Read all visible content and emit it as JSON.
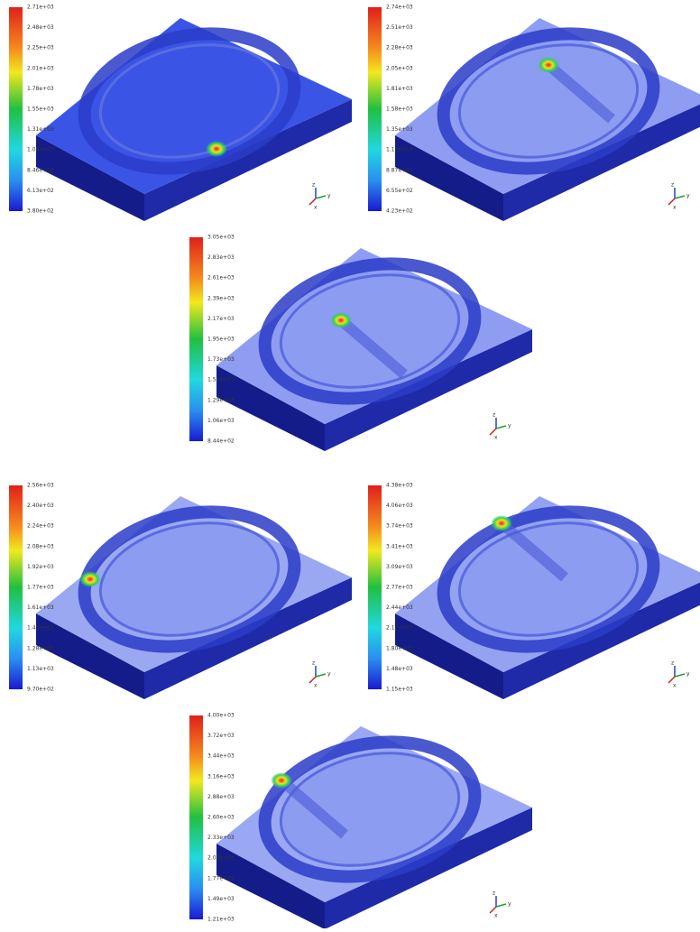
{
  "panels": [
    {
      "colorbar": [
        "2.71e+03",
        "2.48e+03",
        "2.25e+03",
        "2.01e+03",
        "1.78e+03",
        "1.55e+03",
        "1.31e+03",
        "1.08e+03",
        "8.46e+02",
        "6.13e+02",
        "3.80e+02"
      ]
    },
    {
      "colorbar": [
        "2.74e+03",
        "2.51e+03",
        "2.28e+03",
        "2.05e+03",
        "1.81e+03",
        "1.58e+03",
        "1.35e+03",
        "1.12e+03",
        "8.87e+02",
        "6.55e+02",
        "4.23e+02"
      ]
    },
    {
      "colorbar": [
        "3.05e+03",
        "2.83e+03",
        "2.61e+03",
        "2.39e+03",
        "2.17e+03",
        "1.95e+03",
        "1.73e+03",
        "1.51e+03",
        "1.29e+03",
        "1.06e+03",
        "8.44e+02"
      ]
    },
    {
      "colorbar": [
        "2.56e+03",
        "2.40e+03",
        "2.24e+03",
        "2.08e+03",
        "1.92e+03",
        "1.77e+03",
        "1.61e+03",
        "1.45e+03",
        "1.28e+03",
        "1.13e+03",
        "9.70e+02"
      ]
    },
    {
      "colorbar": [
        "4.38e+03",
        "4.06e+03",
        "3.74e+03",
        "3.41e+03",
        "3.09e+03",
        "2.77e+03",
        "2.44e+03",
        "2.12e+03",
        "1.80e+03",
        "1.48e+03",
        "1.15e+03"
      ]
    },
    {
      "colorbar": [
        "4.00e+03",
        "3.72e+03",
        "3.44e+03",
        "3.16e+03",
        "2.88e+03",
        "2.60e+03",
        "2.33e+03",
        "2.05e+03",
        "1.77e+03",
        "1.49e+03",
        "1.21e+03"
      ]
    }
  ],
  "triad_labels": [
    "z",
    "y",
    "x"
  ]
}
